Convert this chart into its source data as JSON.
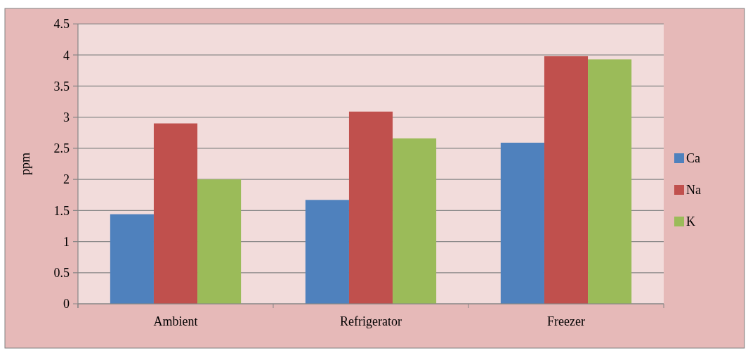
{
  "chart_data": {
    "type": "bar",
    "ylabel": "ppm",
    "categories": [
      "Ambient",
      "Refrigerator",
      "Freezer"
    ],
    "series": [
      {
        "name": "Ca",
        "color": "#4f81bd",
        "values": [
          1.44,
          1.67,
          2.59
        ]
      },
      {
        "name": "Na",
        "color": "#c0504d",
        "values": [
          2.9,
          3.09,
          3.98
        ]
      },
      {
        "name": "K",
        "color": "#9bbb59",
        "values": [
          2.0,
          2.66,
          3.93
        ]
      }
    ],
    "ylim": [
      0,
      4.5
    ],
    "yticks": [
      0,
      0.5,
      1,
      1.5,
      2,
      2.5,
      3,
      3.5,
      4,
      4.5
    ],
    "grid": "y",
    "legend": "right"
  }
}
